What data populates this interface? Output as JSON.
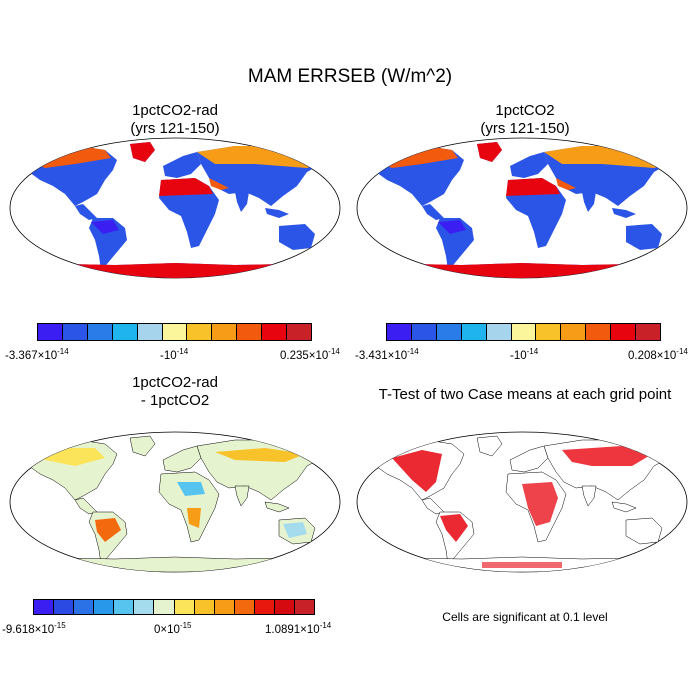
{
  "title": "MAM ERRSEB (W/m^2)",
  "panels": [
    {
      "title_line1": "1pctCO2-rad",
      "title_line2": "(yrs 121-150)",
      "colorbar_colors": [
        "#3a1ef2",
        "#2b55e6",
        "#2a7de8",
        "#1fb4ee",
        "#a6d4ec",
        "#fbf59b",
        "#f8c22a",
        "#f79c16",
        "#f25a0d",
        "#e8040e",
        "#c82228"
      ],
      "colorbar_labels": {
        "min": "-3.367×10",
        "min_exp": "-14",
        "mid": "-10",
        "mid_exp": "-14",
        "max": "0.235×10",
        "max_exp": "-14"
      }
    },
    {
      "title_line1": "1pctCO2",
      "title_line2": "(yrs 121-150)",
      "colorbar_colors": [
        "#3a1ef2",
        "#2b55e6",
        "#2a7de8",
        "#1fb4ee",
        "#a6d4ec",
        "#fbf59b",
        "#f8c22a",
        "#f79c16",
        "#f25a0d",
        "#e8040e",
        "#c82228"
      ],
      "colorbar_labels": {
        "min": "-3.431×10",
        "min_exp": "-14",
        "mid": "-10",
        "mid_exp": "-14",
        "max": "0.208×10",
        "max_exp": "-14"
      }
    },
    {
      "title_line1": "1pctCO2-rad",
      "title_line2": "- 1pctCO2",
      "colorbar_colors": [
        "#3a1ef2",
        "#2b4ae4",
        "#2a72e6",
        "#2898ea",
        "#56c4ee",
        "#a4dcee",
        "#e6f3cf",
        "#fbe35a",
        "#f8c22a",
        "#f79c16",
        "#f26a0d",
        "#e8180e",
        "#d40a10",
        "#c82228"
      ],
      "colorbar_labels": {
        "min": "-9.618×10",
        "min_exp": "-15",
        "mid": "0×10",
        "mid_exp": "-15",
        "max": "1.0891×10",
        "max_exp": "-14"
      }
    },
    {
      "title_line1": "T-Test of two Case means at each grid point",
      "note": "Cells are significant at 0.1 level"
    }
  ],
  "chart_data": [
    {
      "type": "heatmap",
      "title": "1pctCO2-rad (yrs 121-150)",
      "projection": "Robinson",
      "value_range": [
        -3.367e-14,
        2.35e-15
      ],
      "mid_label_value": -1e-14,
      "colorbar_levels": 11
    },
    {
      "type": "heatmap",
      "title": "1pctCO2 (yrs 121-150)",
      "projection": "Robinson",
      "value_range": [
        -3.431e-14,
        2.08e-15
      ],
      "mid_label_value": -1e-14,
      "colorbar_levels": 11
    },
    {
      "type": "heatmap",
      "title": "1pctCO2-rad - 1pctCO2",
      "projection": "Robinson",
      "value_range": [
        -9.618e-15,
        1.0891e-14
      ],
      "mid_label_value": 0,
      "colorbar_levels": 14
    },
    {
      "type": "heatmap",
      "title": "T-Test of two Case means at each grid point",
      "projection": "Robinson",
      "significance_level": 0.1,
      "significant_color": "#e8040e"
    }
  ]
}
